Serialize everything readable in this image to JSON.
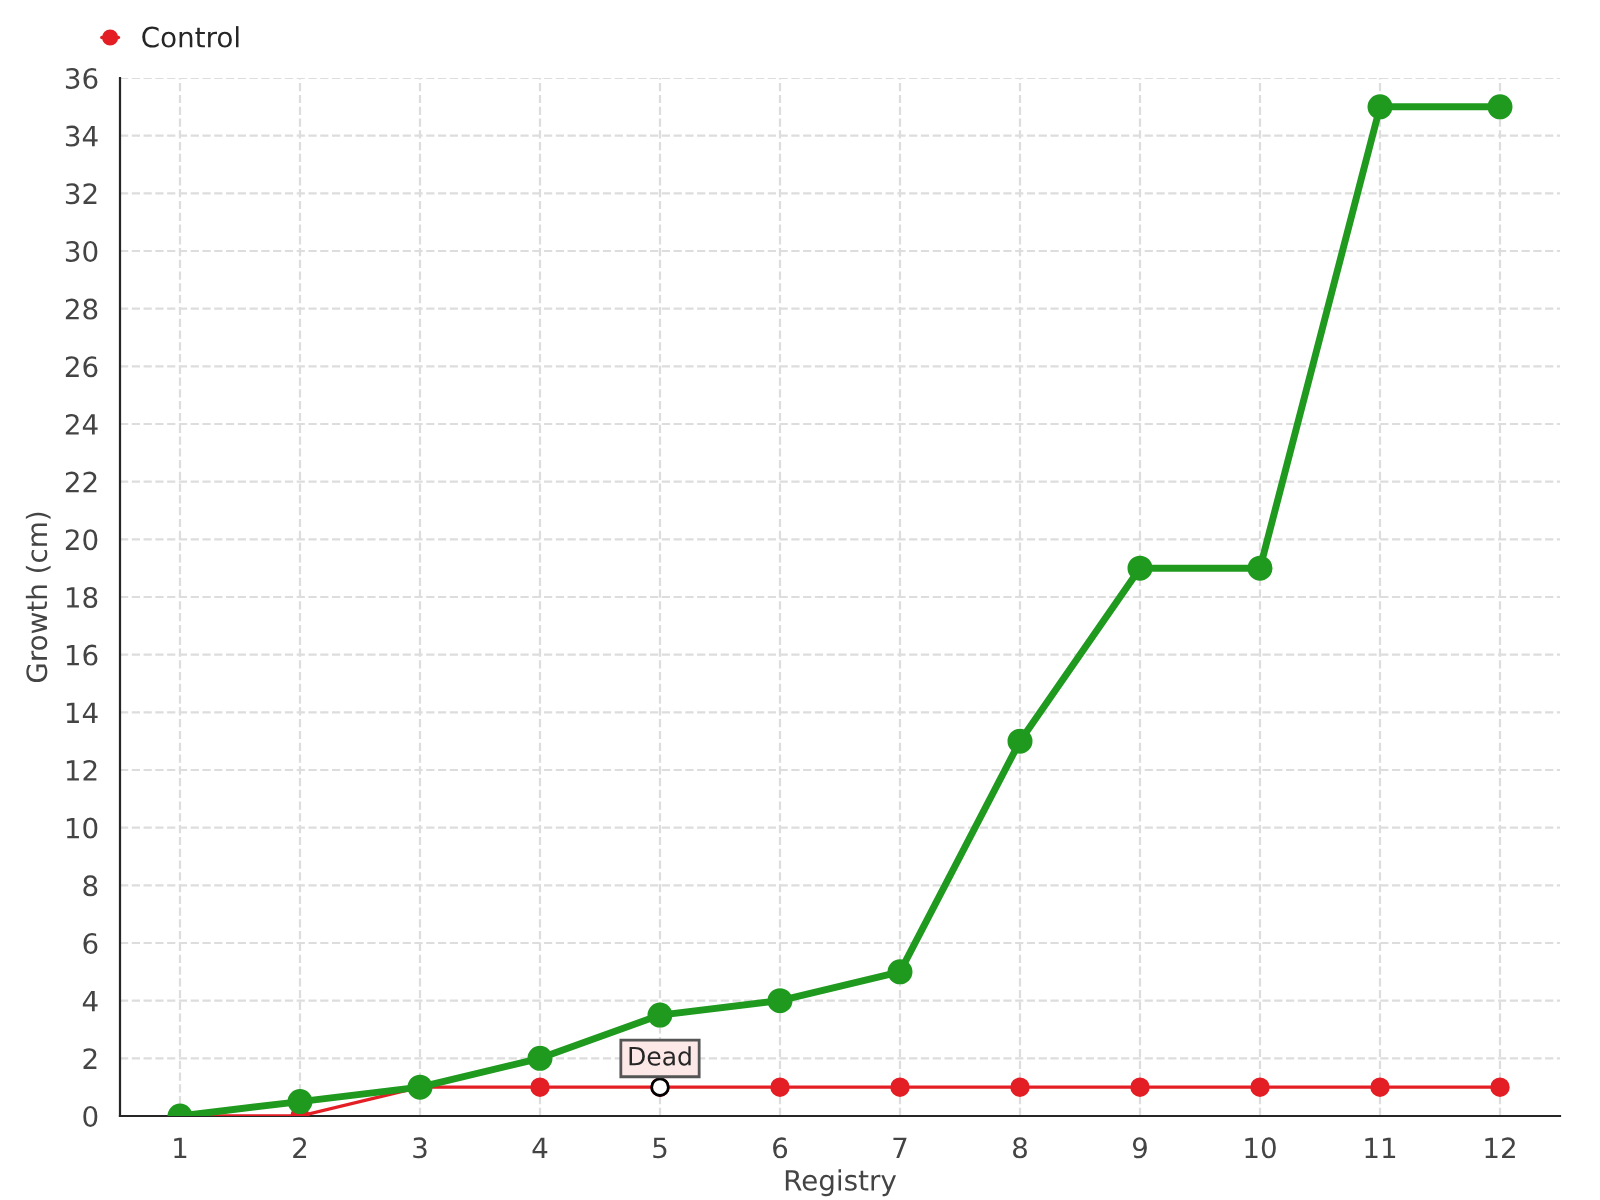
{
  "chart_data": {
    "type": "line",
    "xlabel": "Registry",
    "ylabel": "Growth (cm)",
    "categories": [
      "1",
      "2",
      "3",
      "4",
      "5",
      "6",
      "7",
      "8",
      "9",
      "10",
      "11",
      "12"
    ],
    "series": [
      {
        "color": "#1f9a1f",
        "values": [
          0,
          0.5,
          1,
          2,
          3.5,
          4,
          5,
          13,
          19,
          19,
          35,
          35
        ]
      },
      {
        "name": "Control",
        "color": "#e31e24",
        "values": [
          0,
          0,
          1,
          1,
          1,
          1,
          1,
          1,
          1,
          1,
          1,
          1
        ]
      }
    ],
    "ylim": [
      0,
      36
    ],
    "yticks": [
      0,
      2,
      4,
      6,
      8,
      10,
      12,
      14,
      16,
      18,
      20,
      22,
      24,
      26,
      28,
      30,
      32,
      34,
      36
    ],
    "annotations": [
      {
        "text": "Dead",
        "x": "5",
        "y": 1
      }
    ],
    "grid": true,
    "legend": "top left",
    "marker": "circle",
    "line_style": "solid"
  }
}
